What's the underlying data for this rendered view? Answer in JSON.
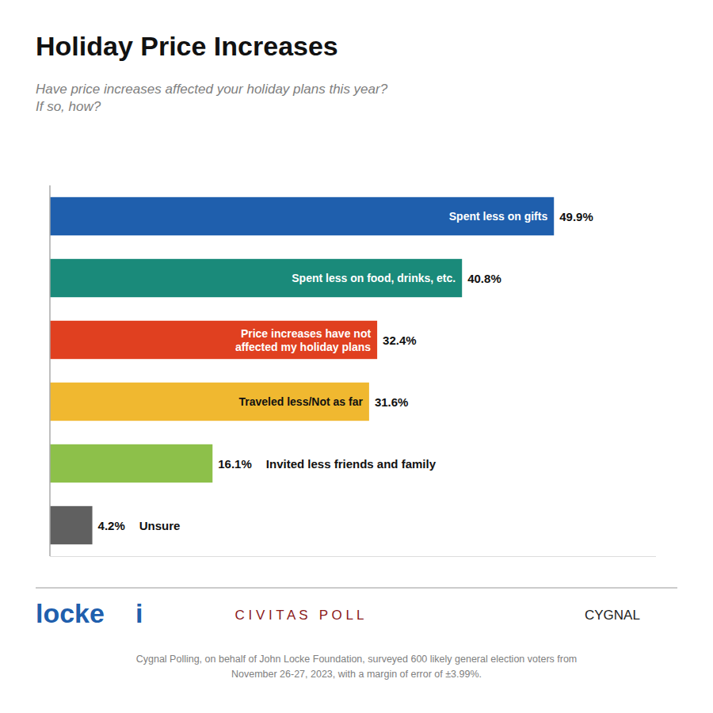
{
  "chart_data": {
    "type": "bar",
    "orientation": "horizontal",
    "title": "Holiday Price Increases",
    "subtitle": "Have price increases affected your holiday plans this year?\nIf so, how?",
    "categories": [
      "Spent less on gifts",
      "Spent less on food, drinks, etc.",
      "Price increases have not\naffected my holiday plans",
      "Traveled less/Not as far",
      "Invited less friends and family",
      "Unsure"
    ],
    "values": [
      49.9,
      40.8,
      32.4,
      31.6,
      16.1,
      4.2
    ],
    "value_labels": [
      "49.9%",
      "40.8%",
      "32.4%",
      "31.6%",
      "16.1%",
      "4.2%"
    ],
    "colors": [
      "#1F5FAD",
      "#1A8A7A",
      "#E04020",
      "#F0B830",
      "#8DC04A",
      "#606060"
    ],
    "xlim": [
      0,
      60
    ],
    "data_labels": true,
    "tick_labels": false,
    "grid": false,
    "annotations": [
      "locke",
      "i",
      "C I V I T A S   P O L L",
      "CYGNAL",
      "Cygnal Polling, on behalf of John Locke Foundation, surveyed 600 likely general election voters from\nNovember 26-27, 2023, with a margin of error of ±3.99%."
    ]
  }
}
